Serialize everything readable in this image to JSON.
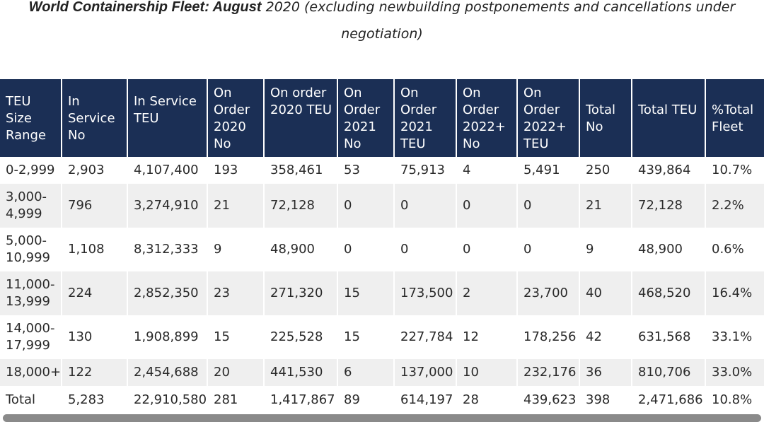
{
  "title": {
    "bold": "World Containership Fleet: August",
    "rest": " 2020 (excluding newbuilding postponements and cancellations under",
    "line2": "negotiation)"
  },
  "table": {
    "headers": [
      "TEU Size Range",
      "In Service No",
      "In Service TEU",
      "On Order 2020 No",
      "On order 2020 TEU",
      "On Order 2021 No",
      "On Order 2021 TEU",
      "On Order 2022+ No",
      "On Order 2022+ TEU",
      "Total No",
      "Total TEU",
      "%Total Fleet"
    ],
    "rows": [
      [
        "0-2,999",
        "2,903",
        "4,107,400",
        "193",
        "358,461",
        "53",
        "75,913",
        "4",
        "5,491",
        "250",
        "439,864",
        "10.7%"
      ],
      [
        "3,000-4,999",
        "796",
        "3,274,910",
        "21",
        "72,128",
        "0",
        "0",
        "0",
        "0",
        "21",
        "72,128",
        "2.2%"
      ],
      [
        "5,000-10,999",
        "1,108",
        "8,312,333",
        "9",
        "48,900",
        "0",
        "0",
        "0",
        "0",
        "9",
        "48,900",
        "0.6%"
      ],
      [
        "11,000-13,999",
        "224",
        "2,852,350",
        "23",
        "271,320",
        "15",
        "173,500",
        "2",
        "23,700",
        "40",
        "468,520",
        "16.4%"
      ],
      [
        "14,000-17,999",
        "130",
        "1,908,899",
        "15",
        "225,528",
        "15",
        "227,784",
        "12",
        "178,256",
        "42",
        "631,568",
        "33.1%"
      ],
      [
        "18,000+",
        "122",
        "2,454,688",
        "20",
        "441,530",
        "6",
        "137,000",
        "10",
        "232,176",
        "36",
        "810,706",
        "33.0%"
      ],
      [
        "Total",
        "5,283",
        "22,910,580",
        "281",
        "1,417,867",
        "89",
        "614,197",
        "28",
        "439,623",
        "398",
        "2,471,686",
        "10.8%"
      ]
    ]
  },
  "colors": {
    "header_bg": "#1b2f55",
    "stripe": "#efefef"
  }
}
